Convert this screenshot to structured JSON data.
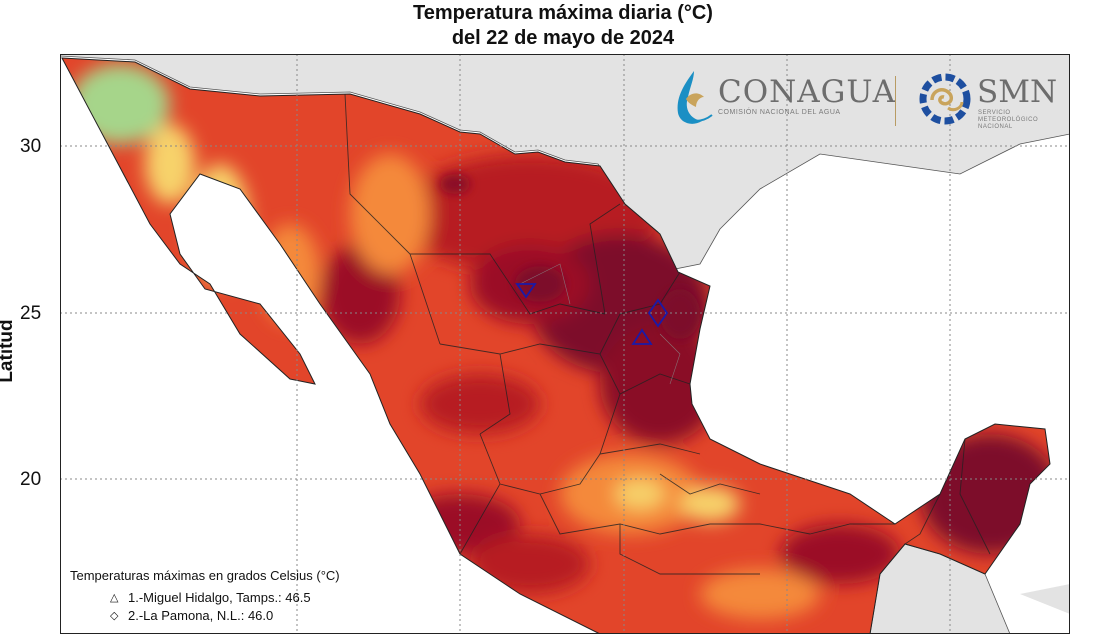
{
  "title": {
    "line1": "Temperatura máxima diaria (°C)",
    "line2": "del 22 de mayo de 2024"
  },
  "axis": {
    "ylabel": "Latitud",
    "yticks": [
      "30",
      "25",
      "20"
    ]
  },
  "logos": {
    "conagua_name": "CONAGUA",
    "conagua_sub": "COMISIÓN NACIONAL DEL AGUA",
    "smn_name": "SMN",
    "smn_sub1": "SERVICIO",
    "smn_sub2": "METEOROLÓGICO",
    "smn_sub3": "NACIONAL"
  },
  "legend": {
    "title": "Temperaturas máximas en grados Celsius (°C)",
    "items": [
      {
        "marker": "△",
        "label": "1.-Miguel Hidalgo, Tamps.: 46.5"
      },
      {
        "marker": "◇",
        "label": "2.-La Pamona, N.L.: 46.0"
      }
    ]
  },
  "colors": {
    "land_outside": "#e3e3e3",
    "sea": "#ffffff",
    "hot_dark": "#7d0a2a",
    "hot": "#b71c24",
    "warm": "#e2452a",
    "mild": "#f4893a",
    "yellow": "#f7d26a",
    "green": "#a6d58a",
    "marker": "#1a1aa8"
  }
}
